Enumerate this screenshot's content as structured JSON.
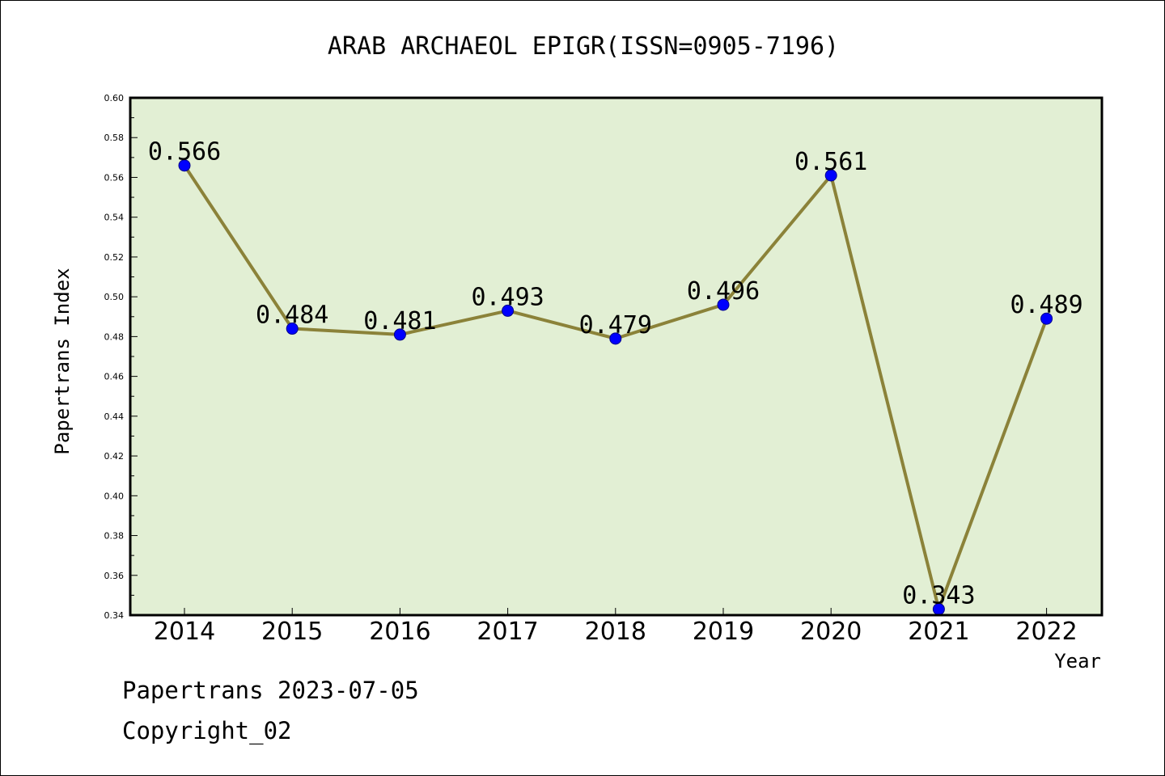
{
  "chart_data": {
    "type": "line",
    "title": "ARAB ARCHAEOL EPIGR(ISSN=0905-7196)",
    "xlabel": "Year",
    "ylabel": "Papertrans Index",
    "categories": [
      "2014",
      "2015",
      "2016",
      "2017",
      "2018",
      "2019",
      "2020",
      "2021",
      "2022"
    ],
    "values": [
      0.566,
      0.484,
      0.481,
      0.493,
      0.479,
      0.496,
      0.561,
      0.343,
      0.489
    ],
    "data_labels": [
      "0.566",
      "0.484",
      "0.481",
      "0.493",
      "0.479",
      "0.496",
      "0.561",
      "0.343",
      "0.489"
    ],
    "ylim": [
      0.34,
      0.6
    ],
    "yticks": [
      0.34,
      0.36,
      0.38,
      0.4,
      0.42,
      0.44,
      0.46,
      0.48,
      0.5,
      0.52,
      0.54,
      0.56,
      0.58,
      0.6
    ],
    "ytick_labels": [
      "0.34",
      "0.36",
      "0.38",
      "0.40",
      "0.42",
      "0.44",
      "0.46",
      "0.48",
      "0.50",
      "0.52",
      "0.54",
      "0.56",
      "0.58",
      "0.60"
    ],
    "grid": false,
    "legend": "none",
    "colors": {
      "plot_background": "#e2efd4",
      "line": "#8b8239",
      "marker_fill": "#0000ff",
      "marker_edge": "#00008b",
      "axes": "#000000"
    }
  },
  "footer": {
    "line1": "Papertrans 2023-07-05",
    "line2": "Copyright_02"
  }
}
